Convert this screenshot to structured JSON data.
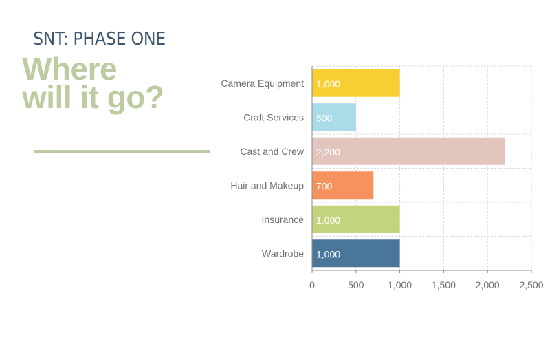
{
  "header": {
    "kicker": "SNT: PHASE ONE",
    "headline_line1": "Where",
    "headline_line2": "will it go?"
  },
  "colors": {
    "kicker": "#3e5870",
    "headline": "#bccca0",
    "grid": "#d9d9d9",
    "axis": "#8c8c8c",
    "label": "#707070"
  },
  "chart_data": {
    "type": "bar",
    "orientation": "horizontal",
    "categories": [
      "Camera Equipment",
      "Craft Services",
      "Cast and Crew",
      "Hair and Makeup",
      "Insurance",
      "Wardrobe"
    ],
    "values": [
      1000,
      500,
      2200,
      700,
      1000,
      1000
    ],
    "value_labels": [
      "1,000",
      "500",
      "2,200",
      "700",
      "1,000",
      "1,000"
    ],
    "bar_colors": [
      "#f7cf33",
      "#a9dbe9",
      "#e2c6be",
      "#f5925e",
      "#c2d47c",
      "#4a7699"
    ],
    "xlim": [
      0,
      2500
    ],
    "xticks": [
      0,
      500,
      1000,
      1500,
      2000,
      2500
    ],
    "xtick_labels": [
      "0",
      "500",
      "1,000",
      "1,500",
      "2,000",
      "2,500"
    ],
    "grid": true,
    "xlabel": "",
    "ylabel": ""
  }
}
